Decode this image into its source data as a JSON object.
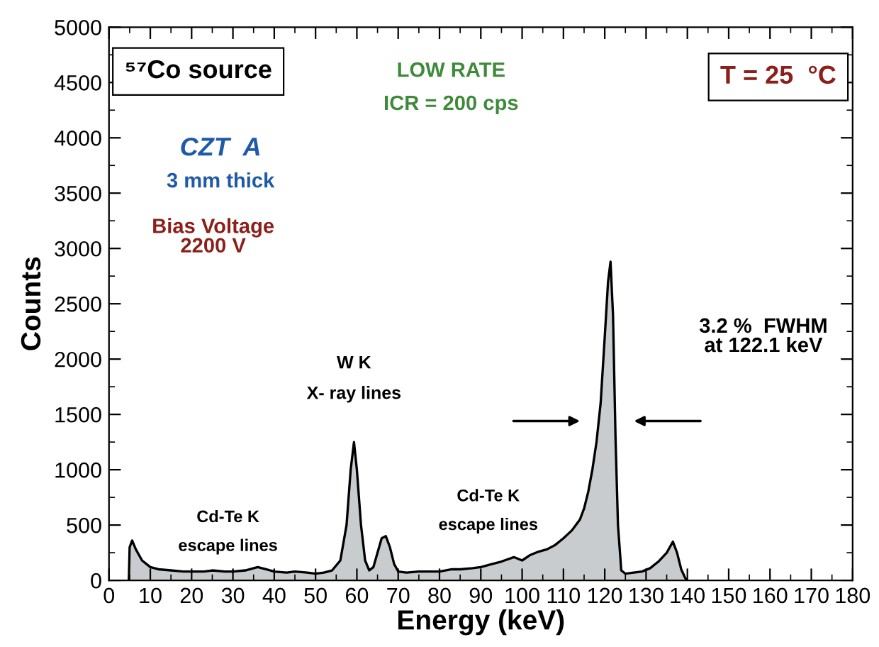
{
  "chart_data": {
    "type": "area",
    "xlabel": "Energy (keV)",
    "ylabel": "Counts",
    "xlim": [
      0,
      180
    ],
    "xticks": [
      0,
      10,
      20,
      30,
      40,
      50,
      60,
      70,
      80,
      90,
      100,
      110,
      120,
      130,
      140,
      150,
      160,
      170,
      180
    ],
    "ylim": [
      0,
      5000
    ],
    "yticks": [
      0,
      500,
      1000,
      1500,
      2000,
      2500,
      3000,
      3500,
      4000,
      4500,
      5000
    ],
    "grid": false,
    "legend": false,
    "series": [
      {
        "color": "#c8cccf",
        "x": [
          4.8,
          5.0,
          5.6,
          6.5,
          8,
          10,
          12,
          15,
          18,
          20,
          23,
          25,
          28,
          30,
          33,
          36,
          38,
          40,
          43,
          45,
          48,
          50,
          52,
          54,
          56,
          57.5,
          58.5,
          59.3,
          60,
          61,
          62,
          63,
          64,
          65,
          66,
          67,
          68,
          69,
          70,
          72,
          75,
          78,
          80,
          83,
          85,
          88,
          90,
          93,
          95,
          98,
          100,
          102,
          104,
          106,
          108,
          110,
          112,
          114,
          115,
          116,
          117,
          118,
          119,
          120,
          120.8,
          121.4,
          122,
          122.6,
          123.2,
          124,
          125,
          127,
          129,
          131,
          133,
          135,
          136.5,
          137.5,
          138.5,
          139.5,
          140
        ],
        "values": [
          0,
          300,
          360,
          280,
          180,
          120,
          100,
          90,
          80,
          80,
          80,
          90,
          80,
          80,
          90,
          120,
          100,
          80,
          70,
          80,
          70,
          60,
          70,
          90,
          180,
          500,
          1000,
          1250,
          1000,
          500,
          180,
          90,
          120,
          250,
          380,
          400,
          300,
          150,
          80,
          70,
          80,
          80,
          80,
          100,
          100,
          110,
          120,
          150,
          170,
          210,
          180,
          230,
          260,
          280,
          320,
          380,
          450,
          550,
          650,
          800,
          1000,
          1250,
          1600,
          2200,
          2700,
          2880,
          2400,
          1300,
          500,
          90,
          60,
          70,
          80,
          110,
          170,
          250,
          350,
          250,
          100,
          20,
          0
        ]
      }
    ],
    "annotations": [
      "⁵⁷Co source",
      "LOW RATE",
      "ICR = 200 cps",
      "T = 25  °C",
      "CZT  A",
      "3 mm thick",
      "Bias Voltage\n2200 V",
      "3.2 %  FWHM\nat 122.1 keV",
      {
        "text": "W K\n\nX- ray lines",
        "x": 59.3,
        "y": 1250
      },
      "Cd-Te K\n\nescape lines",
      "Cd-Te K\n\nescape lines"
    ]
  }
}
